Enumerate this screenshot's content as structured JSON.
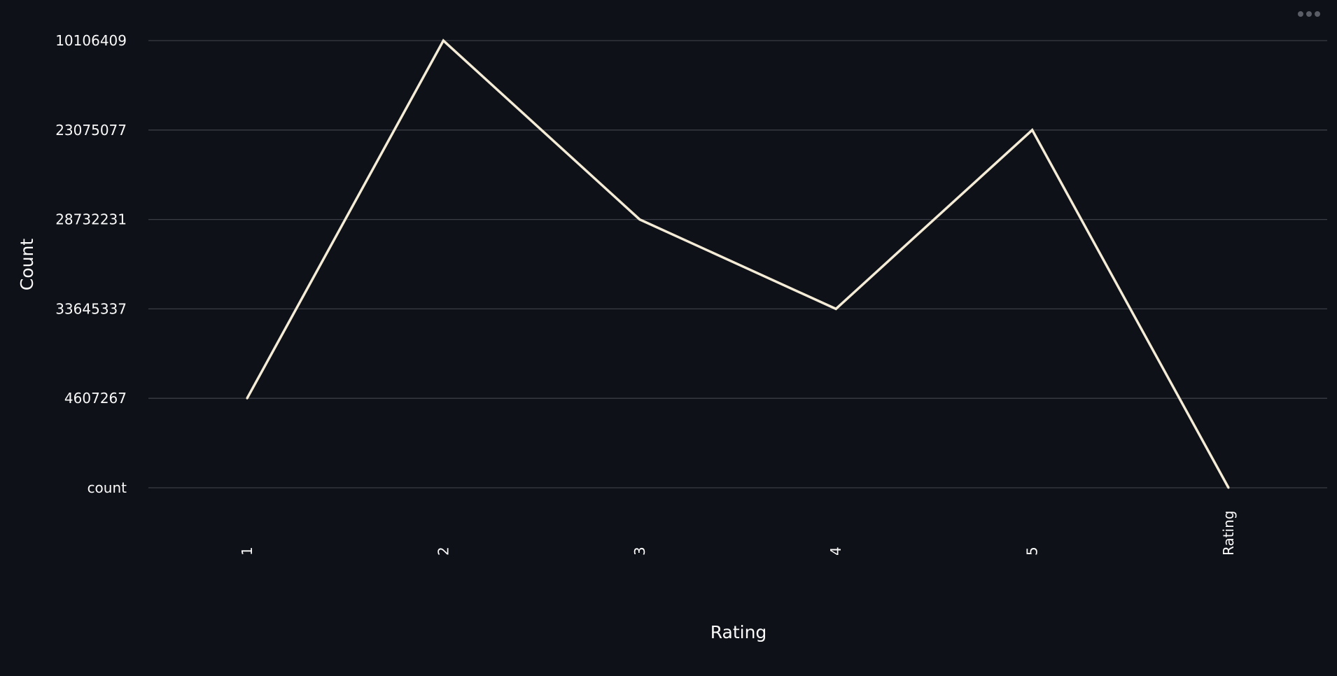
{
  "colors": {
    "background": "#0e1117",
    "line": "#f5ecd7",
    "grid": "#3b3e46",
    "text": "#fafafa",
    "menu": "#5a5d66"
  },
  "menu": {
    "icon": "more-horizontal-icon"
  },
  "chart_data": {
    "type": "line",
    "title": "",
    "xlabel": "Rating",
    "ylabel": "Count",
    "categories": [
      "1",
      "2",
      "3",
      "4",
      "5",
      "Rating"
    ],
    "y_categories_top_to_bottom": [
      "10106409",
      "23075077",
      "28732231",
      "33645337",
      "4607267",
      "count"
    ],
    "series": [
      {
        "values": [
          "4607267",
          "10106409",
          "28732231",
          "33645337",
          "23075077",
          "count"
        ]
      }
    ],
    "grid": true,
    "legend": "none"
  }
}
